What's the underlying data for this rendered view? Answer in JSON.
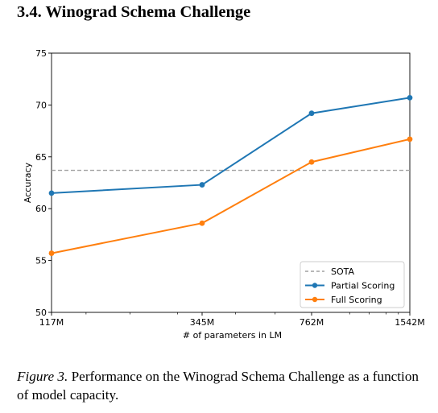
{
  "section": {
    "title": "3.4. Winograd Schema Challenge"
  },
  "figure": {
    "label": "Figure 3.",
    "caption": "Performance on the Winograd Schema Challenge as a function of model capacity."
  },
  "colors": {
    "partial": "#1f77b4",
    "full": "#ff7f0e",
    "sota": "#a0a0a0"
  },
  "chart_data": {
    "type": "line",
    "xlabel": "# of parameters in LM",
    "ylabel": "Accuracy",
    "categories": [
      "117M",
      "345M",
      "762M",
      "1542M"
    ],
    "ylim": [
      50,
      75
    ],
    "yticks": [
      50,
      55,
      60,
      65,
      70,
      75
    ],
    "grid": false,
    "legend_position": "lower-right",
    "series": [
      {
        "name": "Partial Scoring",
        "values": [
          61.5,
          62.3,
          69.2,
          70.7
        ],
        "color": "#1f77b4",
        "marker": "circle"
      },
      {
        "name": "Full Scoring",
        "values": [
          55.7,
          58.6,
          64.5,
          66.7
        ],
        "color": "#ff7f0e",
        "marker": "circle"
      }
    ],
    "reference_lines": [
      {
        "name": "SOTA",
        "value": 63.7,
        "style": "dashed",
        "color": "#a0a0a0"
      }
    ]
  }
}
